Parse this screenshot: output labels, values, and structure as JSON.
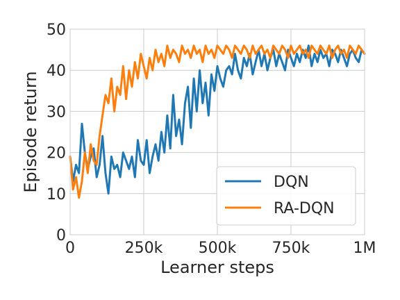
{
  "chart_data": {
    "type": "line",
    "title": "",
    "xlabel": "Learner steps",
    "ylabel": "Episode return",
    "xlim": [
      0,
      1000000
    ],
    "ylim": [
      0,
      50
    ],
    "grid": true,
    "legend_position": "lower-right",
    "x_ticks": [
      {
        "value": 0,
        "label": "0"
      },
      {
        "value": 250000,
        "label": "250k"
      },
      {
        "value": 500000,
        "label": "500k"
      },
      {
        "value": 750000,
        "label": "750k"
      },
      {
        "value": 1000000,
        "label": "1M"
      }
    ],
    "y_ticks": [
      {
        "value": 0,
        "label": "0"
      },
      {
        "value": 10,
        "label": "10"
      },
      {
        "value": 20,
        "label": "20"
      },
      {
        "value": 30,
        "label": "30"
      },
      {
        "value": 40,
        "label": "40"
      },
      {
        "value": 50,
        "label": "50"
      }
    ],
    "series": [
      {
        "name": "DQN",
        "color": "#1f77b4",
        "x": [
          0,
          10000,
          20000,
          30000,
          40000,
          50000,
          60000,
          70000,
          80000,
          90000,
          100000,
          110000,
          120000,
          130000,
          140000,
          150000,
          160000,
          170000,
          180000,
          190000,
          200000,
          210000,
          220000,
          230000,
          240000,
          250000,
          260000,
          270000,
          280000,
          290000,
          300000,
          310000,
          320000,
          330000,
          340000,
          350000,
          360000,
          370000,
          380000,
          390000,
          400000,
          410000,
          420000,
          430000,
          440000,
          450000,
          460000,
          470000,
          480000,
          490000,
          500000,
          510000,
          520000,
          530000,
          540000,
          550000,
          560000,
          570000,
          580000,
          590000,
          600000,
          610000,
          620000,
          630000,
          640000,
          650000,
          660000,
          670000,
          680000,
          690000,
          700000,
          710000,
          720000,
          730000,
          740000,
          750000,
          760000,
          770000,
          780000,
          790000,
          800000,
          810000,
          820000,
          830000,
          840000,
          850000,
          860000,
          870000,
          880000,
          890000,
          900000,
          910000,
          920000,
          930000,
          940000,
          950000,
          960000,
          970000,
          980000,
          990000,
          1000000
        ],
        "y": [
          19,
          13,
          17,
          15,
          27,
          20,
          16,
          19,
          21,
          14,
          17,
          24,
          15,
          10,
          19,
          16,
          17,
          14,
          20,
          18,
          16,
          19,
          14,
          23,
          18,
          17,
          23,
          15,
          19,
          22,
          18,
          25,
          20,
          29,
          21,
          34,
          24,
          28,
          22,
          32,
          36,
          26,
          38,
          30,
          40,
          32,
          37,
          29,
          39,
          35,
          41,
          38,
          36,
          40,
          41,
          39,
          44,
          40,
          38,
          43,
          41,
          44,
          39,
          42,
          45,
          41,
          44,
          40,
          43,
          45,
          41,
          44,
          42,
          40,
          45,
          43,
          41,
          44,
          42,
          45,
          43,
          46,
          41,
          44,
          42,
          45,
          43,
          44,
          41,
          45,
          44,
          42,
          45,
          43,
          41,
          44,
          45,
          43,
          42,
          45,
          44
        ]
      },
      {
        "name": "RA-DQN",
        "color": "#ff7f0e",
        "x": [
          0,
          10000,
          20000,
          30000,
          40000,
          50000,
          60000,
          70000,
          80000,
          90000,
          100000,
          110000,
          120000,
          130000,
          140000,
          150000,
          160000,
          170000,
          180000,
          190000,
          200000,
          210000,
          220000,
          230000,
          240000,
          250000,
          260000,
          270000,
          280000,
          290000,
          300000,
          310000,
          320000,
          330000,
          340000,
          350000,
          360000,
          370000,
          380000,
          390000,
          400000,
          410000,
          420000,
          430000,
          440000,
          450000,
          460000,
          470000,
          480000,
          490000,
          500000,
          510000,
          520000,
          530000,
          540000,
          550000,
          560000,
          570000,
          580000,
          590000,
          600000,
          610000,
          620000,
          630000,
          640000,
          650000,
          660000,
          670000,
          680000,
          690000,
          700000,
          710000,
          720000,
          730000,
          740000,
          750000,
          760000,
          770000,
          780000,
          790000,
          800000,
          810000,
          820000,
          830000,
          840000,
          850000,
          860000,
          870000,
          880000,
          890000,
          900000,
          910000,
          920000,
          930000,
          940000,
          950000,
          960000,
          970000,
          980000,
          990000,
          1000000
        ],
        "y": [
          19,
          11,
          14,
          9,
          13,
          20,
          15,
          22,
          18,
          17,
          24,
          29,
          34,
          32,
          38,
          30,
          36,
          34,
          41,
          33,
          40,
          36,
          42,
          38,
          44,
          41,
          38,
          43,
          40,
          45,
          42,
          44,
          41,
          46,
          43,
          45,
          44,
          42,
          46,
          44,
          45,
          43,
          46,
          44,
          45,
          42,
          46,
          44,
          45,
          43,
          46,
          45,
          44,
          46,
          45,
          43,
          46,
          45,
          44,
          46,
          45,
          43,
          46,
          44,
          45,
          46,
          44,
          45,
          43,
          46,
          45,
          44,
          46,
          45,
          43,
          46,
          44,
          45,
          46,
          44,
          45,
          43,
          46,
          45,
          44,
          46,
          45,
          44,
          46,
          43,
          45,
          46,
          44,
          45,
          43,
          46,
          45,
          44,
          46,
          45,
          44
        ]
      }
    ]
  }
}
